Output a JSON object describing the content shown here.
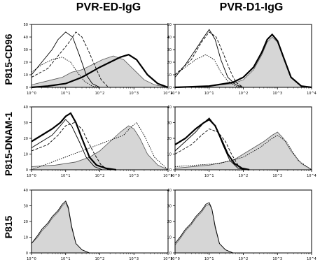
{
  "figure": {
    "columns": [
      "PVR-ED-IgG",
      "PVR-D1-IgG"
    ],
    "rows": [
      "P815-CD96",
      "P815-DNAM-1",
      "P815"
    ]
  },
  "chart_data": {
    "type": "histogram-grid",
    "x_scale": "log",
    "xlim": [
      1,
      10000
    ],
    "x_ticks": [
      "10^0",
      "10^1",
      "10^2",
      "10^3",
      "10^4"
    ],
    "panels": [
      {
        "row": "P815-CD96",
        "column": "PVR-ED-IgG",
        "y_ticks": [
          "0",
          "10",
          "20",
          "30",
          "40",
          "50"
        ],
        "ylim": [
          0,
          50
        ],
        "series": [
          {
            "style": "filled",
            "x": [
              1,
              2,
              4,
              8,
              15,
              30,
              60,
              120,
              250,
              500,
              1000,
              2000,
              4000,
              10000
            ],
            "y": [
              2,
              4,
              6,
              8,
              12,
              14,
              18,
              22,
              25,
              22,
              14,
              6,
              2,
              0
            ]
          },
          {
            "style": "thick",
            "x": [
              1,
              3,
              10,
              30,
              100,
              200,
              400,
              700,
              1200,
              2500,
              5000,
              10000
            ],
            "y": [
              0,
              1,
              3,
              8,
              16,
              20,
              24,
              26,
              22,
              10,
              3,
              0
            ]
          },
          {
            "style": "thin",
            "x": [
              1,
              2,
              4,
              6,
              10,
              16,
              25,
              40,
              60,
              100
            ],
            "y": [
              10,
              20,
              30,
              38,
              44,
              40,
              26,
              10,
              3,
              0
            ]
          },
          {
            "style": "dashed",
            "x": [
              1,
              3,
              6,
              12,
              20,
              30,
              45,
              70,
              110,
              180
            ],
            "y": [
              8,
              15,
              25,
              35,
              44,
              40,
              30,
              18,
              6,
              0
            ]
          },
          {
            "style": "dotted",
            "x": [
              1,
              2,
              4,
              8,
              14,
              22,
              35,
              60,
              100
            ],
            "y": [
              12,
              18,
              22,
              24,
              20,
              12,
              5,
              1,
              0
            ]
          }
        ]
      },
      {
        "row": "P815-CD96",
        "column": "PVR-D1-IgG",
        "y_ticks": [
          "0",
          "10",
          "20",
          "30",
          "40",
          "50"
        ],
        "ylim": [
          0,
          50
        ],
        "series": [
          {
            "style": "filled",
            "x": [
              1,
              10,
              50,
              100,
              200,
              350,
              500,
              700,
              1000,
              1500,
              2500,
              5000,
              10000
            ],
            "y": [
              0,
              1,
              3,
              6,
              14,
              26,
              36,
              40,
              36,
              24,
              8,
              1,
              0
            ]
          },
          {
            "style": "thick",
            "x": [
              1,
              10,
              50,
              100,
              200,
              350,
              500,
              700,
              1000,
              1500,
              2500,
              5000,
              10000
            ],
            "y": [
              0,
              1,
              4,
              8,
              16,
              28,
              38,
              42,
              37,
              24,
              8,
              1,
              0
            ]
          },
          {
            "style": "thin",
            "x": [
              1,
              2,
              4,
              7,
              10,
              15,
              22,
              35,
              60,
              100
            ],
            "y": [
              8,
              18,
              30,
              40,
              46,
              38,
              22,
              8,
              2,
              0
            ]
          },
          {
            "style": "dashed",
            "x": [
              1,
              3,
              6,
              10,
              16,
              25,
              40,
              60,
              100
            ],
            "y": [
              10,
              22,
              36,
              44,
              40,
              28,
              14,
              4,
              0
            ]
          },
          {
            "style": "dotted",
            "x": [
              1,
              2,
              4,
              8,
              14,
              22,
              35,
              60,
              100
            ],
            "y": [
              10,
              16,
              22,
              26,
              22,
              12,
              5,
              1,
              0
            ]
          }
        ]
      },
      {
        "row": "P815-DNAM-1",
        "column": "PVR-ED-IgG",
        "y_ticks": [
          "0",
          "10",
          "20",
          "30",
          "40"
        ],
        "ylim": [
          0,
          40
        ],
        "series": [
          {
            "style": "filled",
            "x": [
              1,
              5,
              20,
              50,
              100,
              200,
              400,
              700,
              1000,
              1500,
              2500,
              5000,
              10000
            ],
            "y": [
              2,
              3,
              5,
              8,
              12,
              18,
              24,
              28,
              26,
              20,
              10,
              3,
              0
            ]
          },
          {
            "style": "thick",
            "x": [
              1,
              2,
              4,
              7,
              10,
              14,
              20,
              30,
              50,
              80,
              150,
              300
            ],
            "y": [
              18,
              22,
              26,
              30,
              34,
              36,
              30,
              20,
              8,
              3,
              1,
              0
            ]
          },
          {
            "style": "thin",
            "x": [
              1,
              2,
              4,
              7,
              10,
              15,
              25,
              40,
              70,
              120
            ],
            "y": [
              14,
              18,
              22,
              28,
              32,
              28,
              18,
              8,
              2,
              0
            ]
          },
          {
            "style": "dashed",
            "x": [
              1,
              3,
              6,
              10,
              18,
              30,
              45,
              70,
              110,
              180
            ],
            "y": [
              12,
              16,
              22,
              28,
              30,
              26,
              18,
              10,
              3,
              0
            ]
          },
          {
            "style": "dotted",
            "x": [
              1,
              500,
              800,
              1200,
              2000,
              4000,
              10000
            ],
            "y": [
              0,
              22,
              27,
              30,
              22,
              8,
              0
            ]
          }
        ]
      },
      {
        "row": "P815-DNAM-1",
        "column": "PVR-D1-IgG",
        "y_ticks": [
          "0",
          "10",
          "20",
          "30",
          "40"
        ],
        "ylim": [
          0,
          40
        ],
        "series": [
          {
            "style": "filled",
            "x": [
              1,
              10,
              50,
              100,
              200,
              400,
              700,
              1000,
              1500,
              2500,
              5000,
              10000
            ],
            "y": [
              1,
              3,
              6,
              10,
              14,
              18,
              22,
              24,
              20,
              12,
              4,
              0
            ]
          },
          {
            "style": "thick",
            "x": [
              1,
              2,
              4,
              7,
              10,
              15,
              22,
              35,
              55,
              90,
              150
            ],
            "y": [
              16,
              20,
              26,
              30,
              32,
              28,
              20,
              10,
              4,
              1,
              0
            ]
          },
          {
            "style": "thin",
            "x": [
              1,
              2,
              4,
              7,
              10,
              15,
              25,
              40,
              70,
              120
            ],
            "y": [
              12,
              18,
              24,
              30,
              33,
              28,
              16,
              6,
              1,
              0
            ]
          },
          {
            "style": "dashed",
            "x": [
              1,
              3,
              6,
              10,
              18,
              30,
              45,
              70,
              110
            ],
            "y": [
              10,
              16,
              22,
              26,
              24,
              18,
              10,
              3,
              0
            ]
          },
          {
            "style": "dotted",
            "x": [
              1,
              20,
              100,
              300,
              700,
              1000,
              1800,
              4000,
              10000
            ],
            "y": [
              2,
              4,
              8,
              14,
              20,
              22,
              18,
              6,
              0
            ]
          }
        ]
      },
      {
        "row": "P815",
        "column": "PVR-ED-IgG",
        "y_ticks": [
          "0",
          "10",
          "20",
          "30",
          "40"
        ],
        "ylim": [
          0,
          40
        ],
        "series": [
          {
            "style": "filled",
            "x": [
              1,
              1.5,
              2,
              3,
              4,
              6,
              8,
              10,
              12,
              15,
              20,
              30,
              50
            ],
            "y": [
              6,
              10,
              14,
              18,
              22,
              26,
              30,
              32,
              28,
              16,
              6,
              2,
              0
            ]
          },
          {
            "style": "thin",
            "x": [
              1,
              1.5,
              2,
              3,
              4,
              6,
              8,
              10,
              12,
              15,
              20,
              30,
              50
            ],
            "y": [
              6,
              11,
              15,
              19,
              23,
              27,
              31,
              33,
              29,
              17,
              6,
              2,
              0
            ]
          }
        ]
      },
      {
        "row": "P815",
        "column": "PVR-D1-IgG",
        "y_ticks": [
          "0",
          "10",
          "20",
          "30",
          "40"
        ],
        "ylim": [
          0,
          40
        ],
        "series": [
          {
            "style": "filled",
            "x": [
              1,
              1.5,
              2,
              3,
              4,
              6,
              8,
              10,
              12,
              15,
              20,
              30,
              50
            ],
            "y": [
              5,
              10,
              14,
              18,
              22,
              26,
              30,
              31,
              28,
              16,
              6,
              2,
              0
            ]
          },
          {
            "style": "thin",
            "x": [
              1,
              1.5,
              2,
              3,
              4,
              6,
              8,
              10,
              12,
              15,
              20,
              30,
              50
            ],
            "y": [
              6,
              11,
              15,
              19,
              23,
              27,
              31,
              32,
              28,
              17,
              6,
              2,
              0
            ]
          }
        ]
      }
    ]
  },
  "colors": {
    "fill": "#d6d6d6",
    "line": "#000000"
  }
}
